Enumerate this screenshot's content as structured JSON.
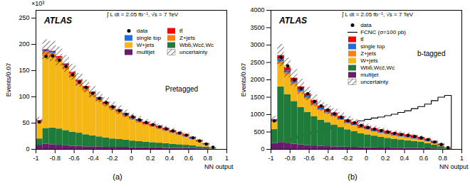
{
  "chart_data": [
    {
      "type": "histogram",
      "experiment": "ATLAS",
      "subtitle": "∫ L dt = 2.05 fb⁻¹, √s = 7 TeV",
      "annotation": "Pretagged",
      "caption": "(a)",
      "y_multiplier": "×10³",
      "x_label": "NN output",
      "y_label": "Events/0.07",
      "xlim": [
        -1,
        1
      ],
      "xticks": [
        -1,
        -0.8,
        -0.6,
        -0.4,
        -0.2,
        0,
        0.2,
        0.4,
        0.6,
        0.8,
        1
      ],
      "ylim": [
        0,
        265
      ],
      "yticks": [
        0,
        50,
        100,
        150,
        200,
        250
      ],
      "grid": false,
      "stacked": true,
      "legend": "upper right",
      "bins": [
        -1,
        -0.93,
        -0.86,
        -0.79,
        -0.72,
        -0.65,
        -0.58,
        -0.51,
        -0.44,
        -0.37,
        -0.3,
        -0.23,
        -0.16,
        -0.09,
        -0.02,
        0.05,
        0.12,
        0.19,
        0.26,
        0.33,
        0.4,
        0.47,
        0.54,
        0.61,
        0.68,
        0.75,
        0.82,
        0.89
      ],
      "data": {
        "name": "data",
        "color": "#000000",
        "marker": "circle",
        "values": [
          52,
          177,
          178,
          170,
          158,
          142,
          128,
          118,
          107,
          97,
          89,
          81,
          74,
          67,
          62,
          56,
          51,
          47,
          43,
          39,
          35,
          31,
          27,
          22,
          16,
          10,
          4
        ]
      },
      "series": [
        {
          "name": "tt̄",
          "color": "#ff0000",
          "values": [
            1,
            2,
            2,
            2,
            2,
            2,
            2,
            2,
            2,
            2,
            2,
            2,
            2,
            2,
            2,
            2,
            2,
            2,
            2,
            2,
            2,
            2,
            2,
            2,
            2,
            1.5,
            0.5
          ]
        },
        {
          "name": "single top",
          "color": "#1f6fe0",
          "values": [
            1,
            2,
            2,
            2,
            2,
            2,
            2,
            2,
            2,
            2,
            2,
            2,
            2,
            2,
            2,
            2,
            2,
            2,
            2,
            2,
            2,
            2,
            2,
            2,
            1,
            1,
            0.3
          ]
        },
        {
          "name": "Z+jets",
          "color": "#ff7f0e",
          "values": [
            3,
            9,
            9,
            8,
            8,
            7,
            6,
            6,
            5,
            5,
            4,
            4,
            4,
            3,
            3,
            3,
            3,
            2,
            2,
            2,
            2,
            2,
            1,
            1,
            1,
            0.5,
            0.2
          ]
        },
        {
          "name": "W+jets",
          "color": "#f5b716",
          "values": [
            30,
            137,
            133,
            126,
            115,
            103,
            91,
            82,
            74,
            66,
            60,
            54,
            48,
            43,
            39,
            35,
            31,
            29,
            26,
            23,
            20,
            17,
            15,
            11,
            8,
            4,
            1.5
          ]
        },
        {
          "name": "Wbb̄,Wcc̄,Wc",
          "color": "#1e7b3a",
          "values": [
            12,
            30,
            32,
            31,
            29,
            27,
            25,
            23,
            21,
            19,
            18,
            16,
            15,
            14,
            13,
            12,
            11,
            10,
            9,
            9,
            8,
            7,
            6,
            5,
            4,
            3,
            1
          ]
        },
        {
          "name": "multijet",
          "color": "#6a1b6e",
          "values": [
            8,
            10,
            9,
            8,
            7,
            6,
            6,
            5,
            5,
            5,
            4,
            4,
            4,
            4,
            3,
            3,
            3,
            3,
            3,
            2,
            2,
            2,
            2,
            2,
            1,
            1,
            0.5
          ]
        }
      ],
      "uncertainty": {
        "name": "uncertainty",
        "values": [
          6,
          19,
          19,
          18,
          16,
          15,
          13,
          12,
          11,
          10,
          9,
          8,
          8,
          7,
          6,
          6,
          5,
          5,
          4,
          4,
          4,
          3,
          3,
          2,
          2,
          1,
          0.5
        ]
      }
    },
    {
      "type": "histogram",
      "experiment": "ATLAS",
      "subtitle": "∫ L dt = 2.05 fb⁻¹, √s = 7 TeV",
      "annotation": "b-tagged",
      "caption": "(b)",
      "x_label": "NN output",
      "y_label": "Events/0.07",
      "xlim": [
        -1,
        1
      ],
      "xticks": [
        -1,
        -0.8,
        -0.6,
        -0.4,
        -0.2,
        0,
        0.2,
        0.4,
        0.6,
        0.8,
        1
      ],
      "ylim": [
        0,
        4000
      ],
      "yticks": [
        0,
        500,
        1000,
        1500,
        2000,
        2500,
        3000,
        3500,
        4000
      ],
      "grid": false,
      "stacked": true,
      "legend": "upper right",
      "bins": [
        -1,
        -0.93,
        -0.86,
        -0.79,
        -0.72,
        -0.65,
        -0.58,
        -0.51,
        -0.44,
        -0.37,
        -0.3,
        -0.23,
        -0.16,
        -0.09,
        -0.02,
        0.05,
        0.12,
        0.19,
        0.26,
        0.33,
        0.4,
        0.47,
        0.54,
        0.61,
        0.68,
        0.75,
        0.82,
        0.89
      ],
      "data": {
        "name": "data",
        "color": "#000000",
        "marker": "circle",
        "values": [
          820,
          2650,
          2400,
          2000,
          1750,
          1600,
          1380,
          1250,
          1130,
          1020,
          920,
          820,
          760,
          690,
          630,
          580,
          540,
          500,
          460,
          430,
          400,
          370,
          330,
          280,
          210,
          140,
          50
        ]
      },
      "overlay": {
        "name": "FCNC (σ=100 pb)",
        "type": "step",
        "color": "#000000",
        "line_style": "solid",
        "values": [
          50,
          150,
          250,
          330,
          400,
          450,
          500,
          550,
          600,
          650,
          690,
          740,
          780,
          820,
          860,
          900,
          930,
          970,
          1010,
          1060,
          1110,
          1170,
          1230,
          1300,
          1400,
          1500,
          1550
        ]
      },
      "series": [
        {
          "name": "tt̄",
          "color": "#ff0000",
          "values": [
            30,
            100,
            90,
            85,
            80,
            75,
            70,
            65,
            65,
            60,
            60,
            60,
            60,
            60,
            60,
            60,
            60,
            60,
            60,
            60,
            60,
            60,
            55,
            50,
            45,
            35,
            10
          ]
        },
        {
          "name": "single top",
          "color": "#1f6fe0",
          "values": [
            20,
            70,
            60,
            55,
            50,
            45,
            40,
            40,
            35,
            35,
            35,
            30,
            30,
            30,
            30,
            30,
            30,
            30,
            30,
            30,
            30,
            30,
            30,
            25,
            20,
            15,
            5
          ]
        },
        {
          "name": "Z+jets",
          "color": "#ff7f0e",
          "values": [
            30,
            80,
            70,
            60,
            50,
            45,
            40,
            35,
            30,
            30,
            25,
            25,
            20,
            20,
            20,
            15,
            15,
            15,
            15,
            10,
            10,
            10,
            10,
            10,
            5,
            5,
            2
          ]
        },
        {
          "name": "W+jets",
          "color": "#f5b716",
          "values": [
            200,
            650,
            550,
            470,
            410,
            365,
            310,
            270,
            250,
            220,
            200,
            170,
            160,
            135,
            120,
            110,
            105,
            95,
            80,
            75,
            70,
            60,
            50,
            45,
            35,
            15,
            10
          ]
        },
        {
          "name": "Wbb̄,Wcc̄,Wc",
          "color": "#1e7b3a",
          "values": [
            400,
            1600,
            1400,
            1230,
            1080,
            960,
            840,
            750,
            690,
            630,
            560,
            500,
            450,
            400,
            370,
            340,
            310,
            280,
            260,
            240,
            220,
            200,
            180,
            150,
            110,
            70,
            20
          ]
        },
        {
          "name": "multijet",
          "color": "#6a1b6e",
          "values": [
            170,
            200,
            180,
            150,
            130,
            110,
            100,
            90,
            80,
            75,
            70,
            65,
            60,
            55,
            50,
            45,
            40,
            40,
            35,
            35,
            30,
            30,
            25,
            20,
            15,
            10,
            3
          ]
        }
      ],
      "uncertainty": {
        "name": "uncertainty",
        "values": [
          100,
          320,
          280,
          250,
          220,
          190,
          170,
          150,
          140,
          130,
          115,
          100,
          95,
          85,
          80,
          70,
          65,
          60,
          58,
          55,
          50,
          47,
          42,
          36,
          28,
          18,
          6
        ]
      }
    }
  ]
}
